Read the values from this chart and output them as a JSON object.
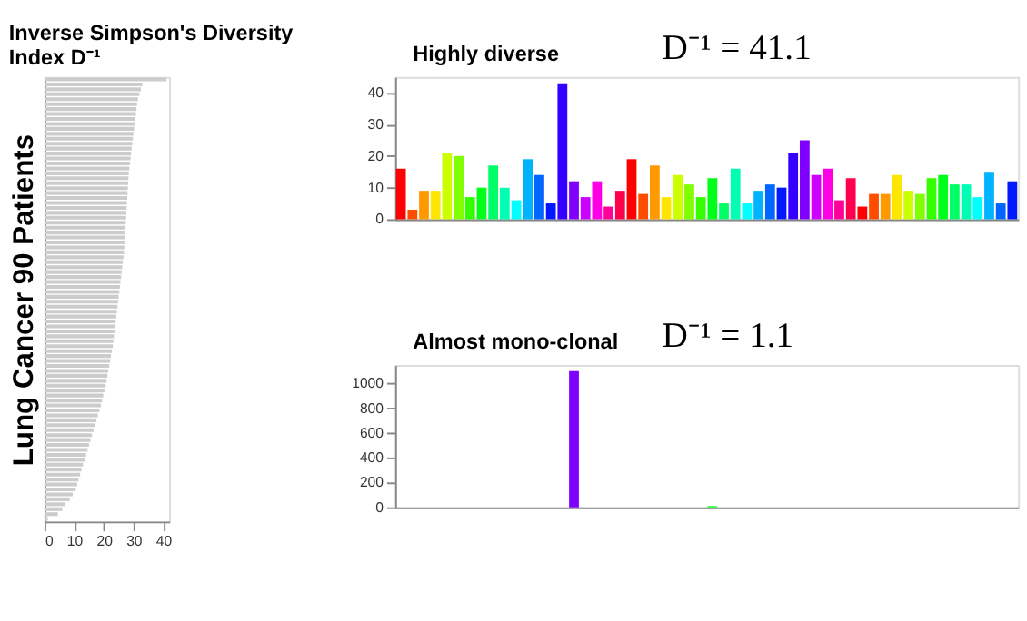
{
  "chart_data": [
    {
      "type": "bar",
      "orientation": "horizontal",
      "title": "Inverse Simpson's Diversity Index D⁻¹",
      "ylabel": "Lung Cancer 90 Patients",
      "categories": [
        null,
        null,
        null,
        null,
        null,
        null,
        null,
        null,
        null,
        null,
        null,
        null,
        null,
        null,
        null,
        null,
        null,
        null,
        null,
        null,
        null,
        null,
        null,
        null,
        null,
        null,
        null,
        null,
        null,
        null,
        null,
        null,
        null,
        null,
        null,
        null,
        null,
        null,
        null,
        null,
        null,
        null,
        null,
        null,
        null,
        null,
        null,
        null,
        null,
        null,
        null,
        null,
        null,
        null,
        null,
        null,
        null,
        null,
        null,
        null,
        null,
        null,
        null,
        null,
        null,
        null,
        null,
        null,
        null,
        null,
        null,
        null,
        null,
        null,
        null,
        null,
        null,
        null,
        null,
        null,
        null,
        null,
        null,
        null,
        null,
        null,
        null,
        null,
        null,
        null
      ],
      "values": [
        41.1,
        33,
        32.5,
        32,
        31.5,
        31.2,
        31,
        30.8,
        30.6,
        30.4,
        30.2,
        30,
        29.8,
        29.6,
        29.4,
        29.2,
        29,
        28.8,
        28.6,
        28.4,
        28.3,
        28.2,
        28.1,
        28,
        27.9,
        27.8,
        27.7,
        27.6,
        27.5,
        27.4,
        27.3,
        27.2,
        27.1,
        27,
        26.9,
        26.8,
        26.6,
        26.4,
        26.2,
        26,
        25.8,
        25.6,
        25.4,
        25.2,
        25,
        24.8,
        24.6,
        24.4,
        24.2,
        24,
        23.8,
        23.6,
        23.4,
        23.2,
        23,
        22.7,
        22.4,
        22.1,
        21.8,
        21.5,
        21.2,
        20.9,
        20.6,
        20.2,
        19.8,
        19.4,
        19,
        18.5,
        18,
        17.5,
        17,
        16.5,
        16,
        15.5,
        15,
        14.5,
        14,
        13.5,
        13,
        12.5,
        12,
        11.5,
        11,
        10.5,
        9.5,
        8.5,
        7,
        6,
        4.5,
        1.1
      ],
      "color": "#cccccc",
      "xlim": [
        0,
        42
      ],
      "xticks": [
        0,
        10,
        20,
        30,
        40
      ],
      "grid": false
    },
    {
      "type": "bar",
      "annotations": [
        "Highly diverse",
        "D⁻¹ = 41.1"
      ],
      "categories": [
        null,
        null,
        null,
        null,
        null,
        null,
        null,
        null,
        null,
        null,
        null,
        null,
        null,
        null,
        null,
        null,
        null,
        null,
        null,
        null,
        null,
        null,
        null,
        null,
        null,
        null,
        null,
        null,
        null,
        null,
        null,
        null,
        null,
        null,
        null,
        null,
        null,
        null,
        null,
        null,
        null,
        null,
        null,
        null,
        null,
        null,
        null,
        null,
        null,
        null,
        null,
        null,
        null,
        null
      ],
      "values": [
        16,
        3,
        9,
        9,
        21,
        20,
        7,
        10,
        17,
        10,
        6,
        19,
        14,
        5,
        43,
        12,
        7,
        12,
        4,
        9,
        19,
        8,
        17,
        7,
        14,
        11,
        7,
        13,
        5,
        16,
        5,
        9,
        11,
        10,
        21,
        25,
        14,
        16,
        6,
        13,
        4,
        8,
        8,
        14,
        9,
        8,
        13,
        14,
        11,
        11,
        7,
        15,
        5,
        12
      ],
      "colors": [
        "#ff0000",
        "#ff4d00",
        "#ff9900",
        "#ffe600",
        "#ccff00",
        "#80ff00",
        "#33ff00",
        "#00ff19",
        "#00ff66",
        "#00ffb2",
        "#00ffff",
        "#00b3ff",
        "#0066ff",
        "#0019ff",
        "#3300ff",
        "#8000ff",
        "#cc00ff",
        "#ff00e6",
        "#ff0099",
        "#ff004d",
        "#ff0000",
        "#ff4d00",
        "#ff9900",
        "#ffe600",
        "#ccff00",
        "#80ff00",
        "#33ff00",
        "#00ff19",
        "#00ff66",
        "#00ffb2",
        "#00ffff",
        "#00b3ff",
        "#0066ff",
        "#0019ff",
        "#3300ff",
        "#8000ff",
        "#cc00ff",
        "#ff00e6",
        "#ff0099",
        "#ff004d",
        "#ff0000",
        "#ff4d00",
        "#ff9900",
        "#ffe600",
        "#ccff00",
        "#80ff00",
        "#33ff00",
        "#00ff19",
        "#00ff66",
        "#00ffb2",
        "#00ffff",
        "#00b3ff",
        "#0066ff",
        "#0019ff"
      ],
      "ylim": [
        0,
        45
      ],
      "yticks": [
        0,
        10,
        20,
        30,
        40
      ],
      "grid": false
    },
    {
      "type": "bar",
      "annotations": [
        "Almost mono-clonal",
        "D⁻¹ = 1.1"
      ],
      "categories": [
        null,
        null,
        null,
        null,
        null,
        null,
        null,
        null,
        null,
        null,
        null,
        null,
        null,
        null,
        null,
        null,
        null,
        null,
        null,
        null,
        null,
        null,
        null,
        null,
        null,
        null,
        null,
        null,
        null,
        null,
        null,
        null,
        null,
        null,
        null,
        null,
        null,
        null,
        null,
        null,
        null,
        null,
        null,
        null,
        null,
        null,
        null,
        null,
        null,
        null,
        null,
        null,
        null,
        null
      ],
      "values": [
        0,
        0,
        0,
        0,
        0,
        0,
        0,
        0,
        0,
        0,
        0,
        0,
        0,
        0,
        0,
        1100,
        0,
        0,
        0,
        0,
        0,
        0,
        0,
        0,
        0,
        0,
        0,
        10,
        0,
        0,
        0,
        0,
        0,
        0,
        0,
        0,
        0,
        0,
        0,
        0,
        0,
        0,
        0,
        0,
        0,
        0,
        0,
        0,
        0,
        0,
        0,
        0,
        0,
        0
      ],
      "colors": [
        "#ff0000",
        "#ff4d00",
        "#ff9900",
        "#ffe600",
        "#ccff00",
        "#80ff00",
        "#33ff00",
        "#00ff19",
        "#00ff66",
        "#00ffb2",
        "#00ffff",
        "#00b3ff",
        "#0066ff",
        "#0019ff",
        "#3300ff",
        "#8000ff",
        "#cc00ff",
        "#ff00e6",
        "#ff0099",
        "#ff004d",
        "#ff0000",
        "#ff4d00",
        "#ff9900",
        "#ffe600",
        "#ccff00",
        "#80ff00",
        "#33ff00",
        "#00ff19",
        "#00ff66",
        "#00ffb2",
        "#00ffff",
        "#00b3ff",
        "#0066ff",
        "#0019ff",
        "#3300ff",
        "#8000ff",
        "#cc00ff",
        "#ff00e6",
        "#ff0099",
        "#ff004d",
        "#ff0000",
        "#ff4d00",
        "#ff9900",
        "#ffe600",
        "#ccff00",
        "#80ff00",
        "#33ff00",
        "#00ff19",
        "#00ff66",
        "#00ffb2",
        "#00ffff",
        "#00b3ff",
        "#0066ff",
        "#0019ff"
      ],
      "ylim": [
        0,
        1150
      ],
      "yticks": [
        0,
        200,
        400,
        600,
        800,
        1000
      ],
      "grid": false
    }
  ]
}
